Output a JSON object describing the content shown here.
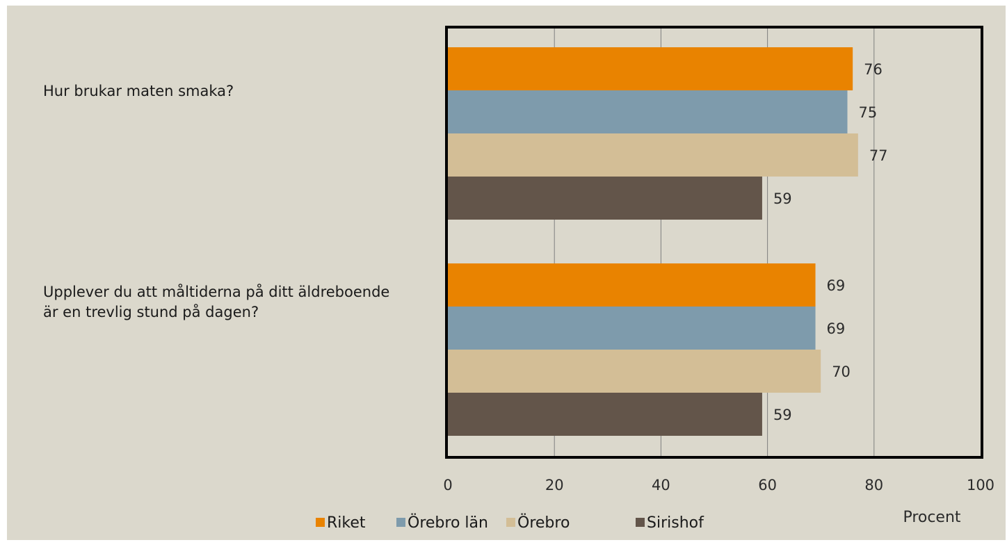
{
  "chart_data": {
    "type": "bar",
    "orientation": "horizontal",
    "categories": [
      "Hur brukar maten smaka?",
      "Upplever du att måltiderna på ditt äldreboende är en trevlig stund på dagen?"
    ],
    "series": [
      {
        "name": "Riket",
        "color": "#e98300",
        "values": [
          76,
          69
        ]
      },
      {
        "name": "Örebro län",
        "color": "#7e9bac",
        "values": [
          75,
          69
        ]
      },
      {
        "name": "Örebro",
        "color": "#d3be96",
        "values": [
          77,
          70
        ]
      },
      {
        "name": "Sirishof",
        "color": "#63554a",
        "values": [
          59,
          59
        ]
      }
    ],
    "xlabel": "Procent",
    "xlim": [
      0,
      100
    ],
    "xticks": [
      0,
      20,
      40,
      60,
      80,
      100
    ],
    "grid": "vertical",
    "legend": "bottom"
  }
}
